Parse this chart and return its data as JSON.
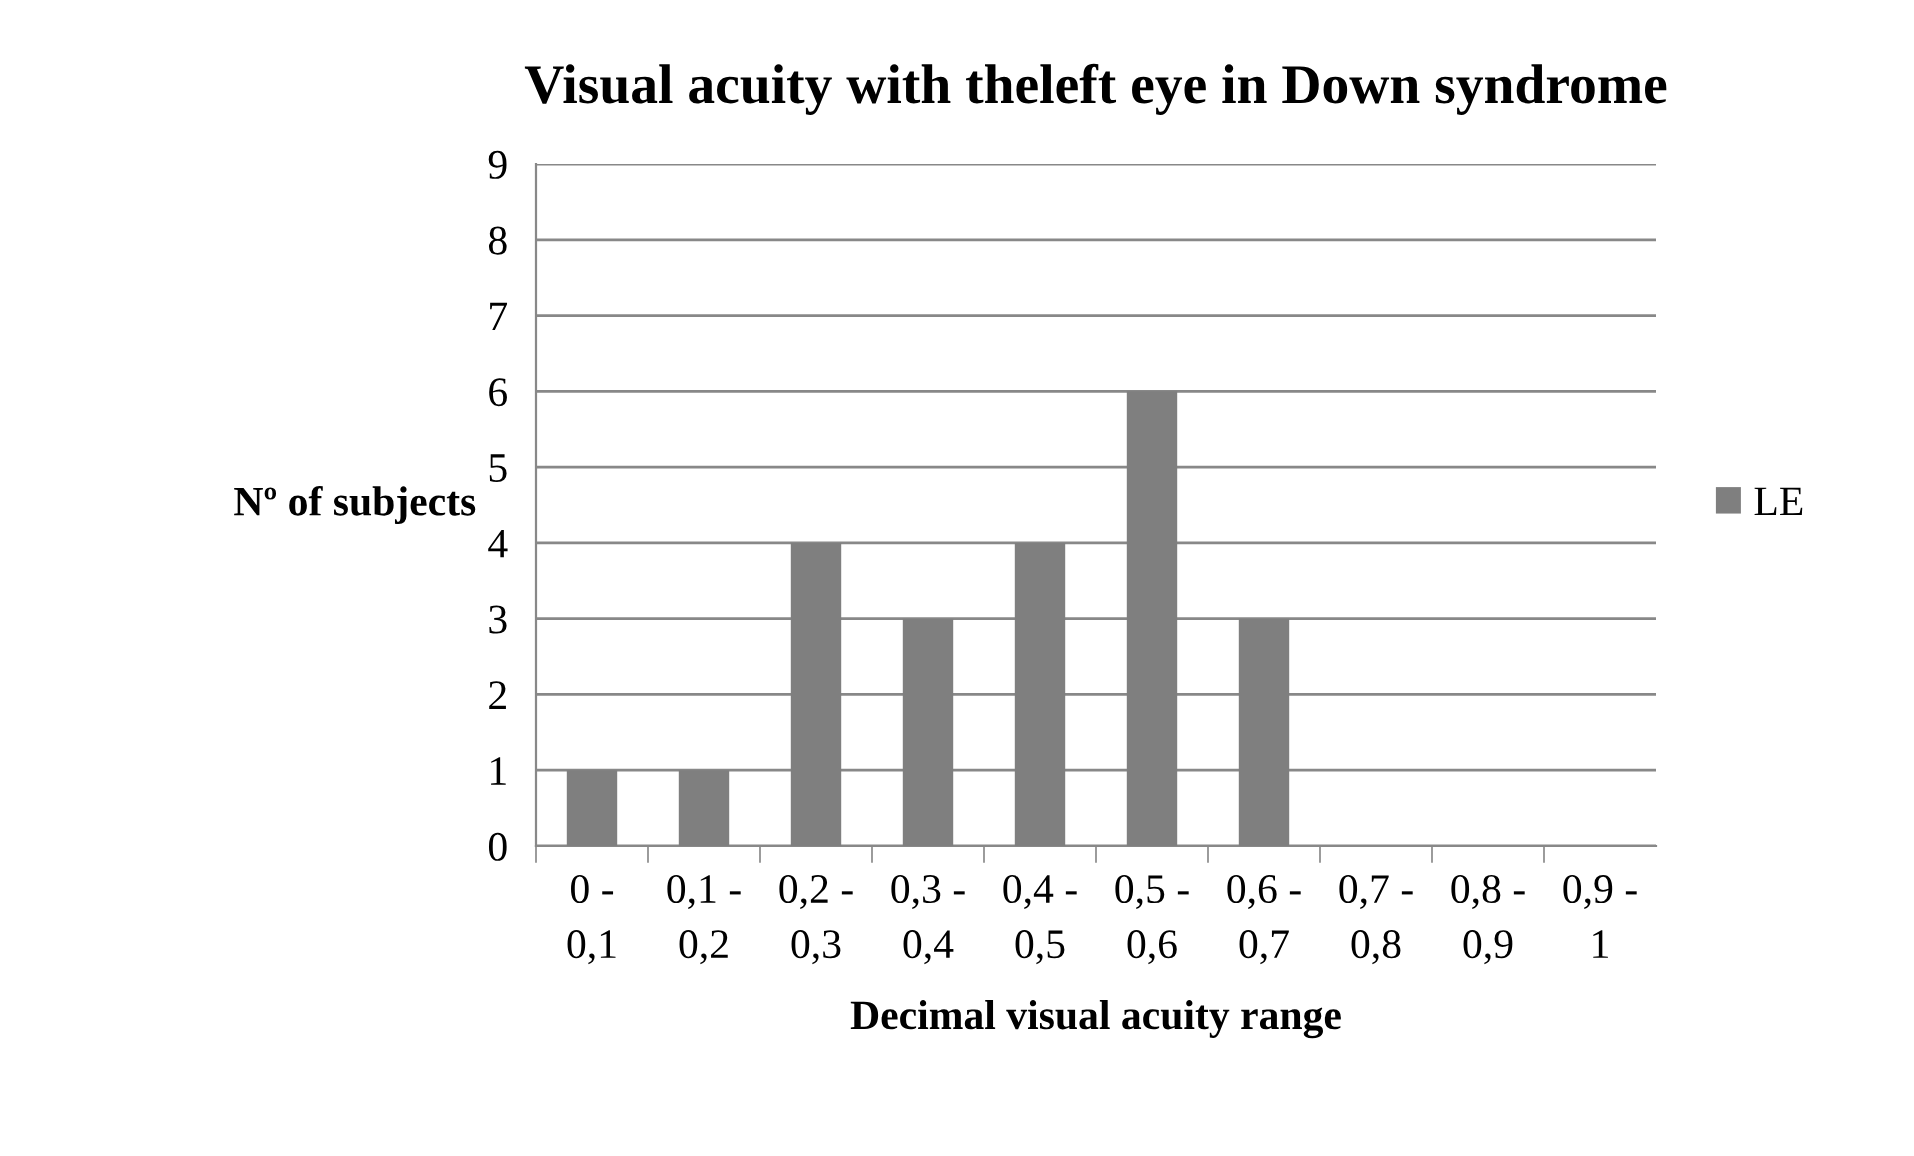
{
  "chart_data": {
    "type": "bar",
    "title": "Visual acuity with theleft eye in Down syndrome",
    "xlabel": "Decimal visual acuity range",
    "ylabel": "Nº of subjects",
    "categories": [
      "0 - 0,1",
      "0,1 - 0,2",
      "0,2 - 0,3",
      "0,3 - 0,4",
      "0,4 - 0,5",
      "0,5 - 0,6",
      "0,6 - 0,7",
      "0,7 - 0,8",
      "0,8 - 0,9",
      "0,9 - 1"
    ],
    "series": [
      {
        "name": "LE",
        "color": "#7f7f7f",
        "values": [
          1,
          1,
          4,
          3,
          4,
          6,
          3,
          0,
          0,
          0
        ]
      }
    ],
    "ylim": [
      0,
      9
    ],
    "yticks": [
      0,
      1,
      2,
      3,
      4,
      5,
      6,
      7,
      8,
      9
    ],
    "grid": "y",
    "legend": "right"
  }
}
